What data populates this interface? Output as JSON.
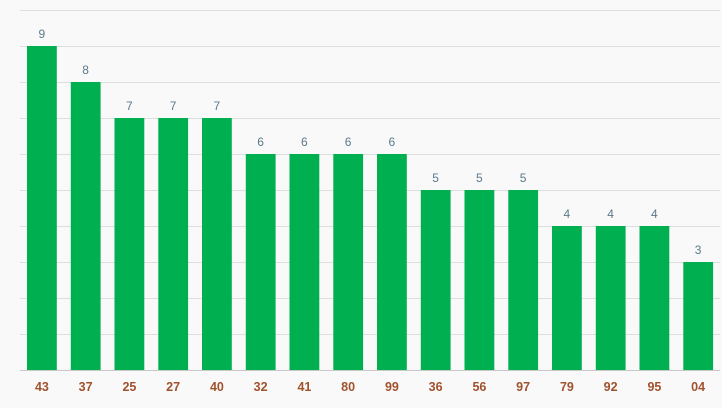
{
  "chart_data": {
    "type": "bar",
    "categories": [
      "43",
      "37",
      "25",
      "27",
      "40",
      "32",
      "41",
      "80",
      "99",
      "36",
      "56",
      "97",
      "79",
      "92",
      "95",
      "04"
    ],
    "values": [
      9,
      8,
      7,
      7,
      7,
      6,
      6,
      6,
      6,
      5,
      5,
      5,
      4,
      4,
      4,
      3
    ],
    "ylim": [
      0,
      10
    ],
    "grid": true,
    "bar_color": "#00b050",
    "value_label_color": "#5a7a8c",
    "category_label_color": "#a0522d",
    "gridline_color": "#dedede",
    "title": "",
    "xlabel": "",
    "ylabel": ""
  }
}
